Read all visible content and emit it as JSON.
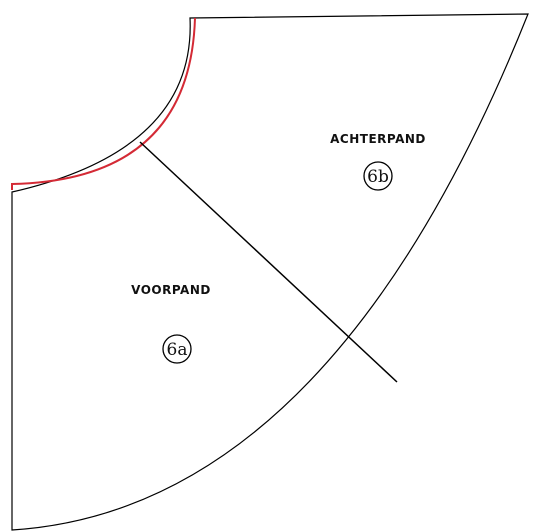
{
  "pieces": [
    {
      "name": "VOORPAND",
      "number": "6a"
    },
    {
      "name": "ACHTERPAND",
      "number": "6b"
    }
  ]
}
